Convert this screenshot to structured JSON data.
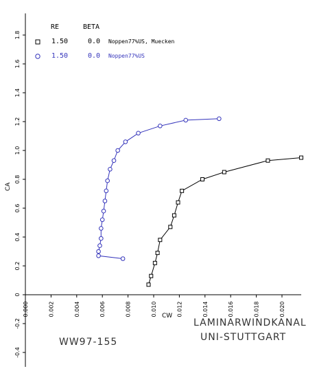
{
  "chart_data": {
    "type": "scatter",
    "xlabel": "CW",
    "ylabel": "CA",
    "xlim": [
      0.0,
      0.0215
    ],
    "ylim": [
      -0.5,
      1.95
    ],
    "x_ticks": [
      "0.000",
      "0.002",
      "0.004",
      "0.006",
      "0.008",
      "0.010",
      "0.012",
      "0.014",
      "0.016",
      "0.018",
      "0.020"
    ],
    "y_ticks": [
      "-0.4",
      "-0.2",
      "0",
      "0.2",
      "0.4",
      "0.6",
      "0.8",
      "1.0",
      "1.2",
      "1.4",
      "1.6",
      "1.8"
    ],
    "legend": {
      "headers": {
        "re": "RE",
        "beta": "BETA"
      },
      "entries": [
        {
          "re": "1.50",
          "beta": "0.0",
          "name": "Noppen77%US, Muecken",
          "color": "#000000"
        },
        {
          "re": "1.50",
          "beta": "0.0",
          "name": "Noppen77%US",
          "color": "#3333bb"
        }
      ]
    },
    "series": [
      {
        "name": "Noppen77%US, Muecken",
        "color": "#000000",
        "marker": "square",
        "points": [
          [
            0.0096,
            0.07
          ],
          [
            0.0098,
            0.13
          ],
          [
            0.0101,
            0.22
          ],
          [
            0.0103,
            0.29
          ],
          [
            0.0105,
            0.38
          ],
          [
            0.0113,
            0.47
          ],
          [
            0.0116,
            0.55
          ],
          [
            0.0119,
            0.64
          ],
          [
            0.0122,
            0.72
          ],
          [
            0.0138,
            0.8
          ],
          [
            0.0155,
            0.85
          ],
          [
            0.0189,
            0.93
          ],
          [
            0.0215,
            0.95
          ]
        ]
      },
      {
        "name": "Noppen77%US",
        "color": "#3333bb",
        "marker": "circle",
        "points": [
          [
            0.0076,
            0.25
          ],
          [
            0.0057,
            0.27
          ],
          [
            0.0057,
            0.3
          ],
          [
            0.0058,
            0.34
          ],
          [
            0.0059,
            0.39
          ],
          [
            0.0059,
            0.46
          ],
          [
            0.006,
            0.52
          ],
          [
            0.0061,
            0.58
          ],
          [
            0.0062,
            0.65
          ],
          [
            0.0063,
            0.72
          ],
          [
            0.0064,
            0.79
          ],
          [
            0.0066,
            0.87
          ],
          [
            0.0069,
            0.93
          ],
          [
            0.0072,
            1.0
          ],
          [
            0.0078,
            1.06
          ],
          [
            0.0088,
            1.12
          ],
          [
            0.0105,
            1.17
          ],
          [
            0.0125,
            1.21
          ],
          [
            0.0151,
            1.22
          ]
        ]
      }
    ],
    "annotations": {
      "lab_line1": "LAMINARWINDKANAL",
      "lab_line2": "UNI-STUTTGART",
      "airfoil": "WW97-155"
    }
  }
}
